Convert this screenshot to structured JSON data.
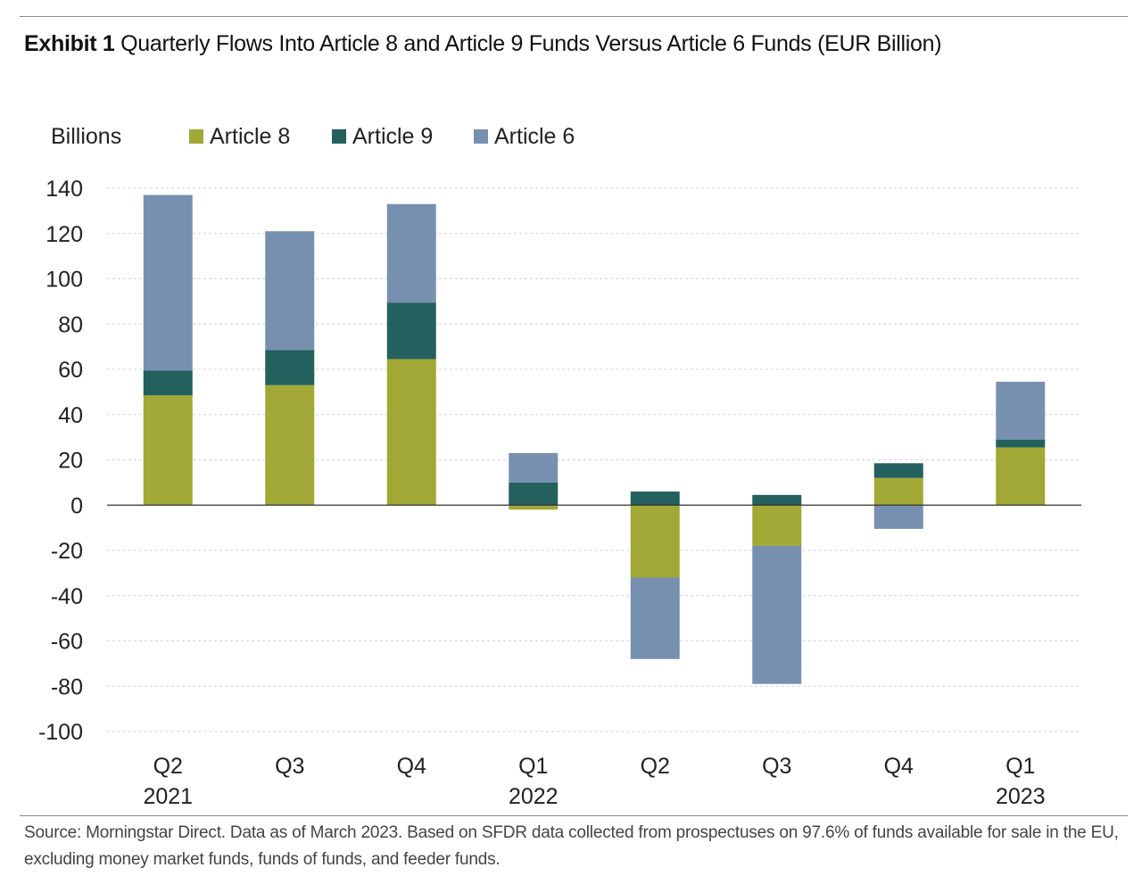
{
  "header": {
    "exhibit_label": "Exhibit 1",
    "title": "Quarterly Flows Into Article 8 and Article 9 Funds Versus Article 6 Funds (EUR Billion)"
  },
  "footer": {
    "source": "Source: Morningstar Direct. Data as of March 2023. Based on SFDR data collected from prospectuses on 97.6% of funds available for sale in the EU, excluding money market funds, funds of funds, and feeder funds."
  },
  "chart_data": {
    "type": "bar",
    "stacked": true,
    "ylabel": "Billions",
    "ylim": [
      -100,
      140
    ],
    "yticks": [
      140,
      120,
      100,
      80,
      60,
      40,
      20,
      0,
      -20,
      -40,
      -60,
      -80,
      -100
    ],
    "grid": true,
    "legend_position": "top",
    "categories": [
      {
        "quarter": "Q2",
        "year": "2021"
      },
      {
        "quarter": "Q3",
        "year": ""
      },
      {
        "quarter": "Q4",
        "year": ""
      },
      {
        "quarter": "Q1",
        "year": "2022"
      },
      {
        "quarter": "Q2",
        "year": ""
      },
      {
        "quarter": "Q3",
        "year": ""
      },
      {
        "quarter": "Q4",
        "year": ""
      },
      {
        "quarter": "Q1",
        "year": "2023"
      }
    ],
    "series": [
      {
        "name": "Article 8",
        "color": "#a2a836",
        "values": [
          48.5,
          53,
          64.5,
          -2,
          -32,
          -18,
          12,
          25.5
        ]
      },
      {
        "name": "Article 9",
        "color": "#23605e",
        "values": [
          11,
          15.5,
          25,
          10,
          6,
          4.5,
          6.5,
          3.5
        ]
      },
      {
        "name": "Article 6",
        "color": "#7890b0",
        "values": [
          77.5,
          52.5,
          43.5,
          13,
          -36,
          -61,
          -10.5,
          25.5
        ]
      }
    ]
  }
}
